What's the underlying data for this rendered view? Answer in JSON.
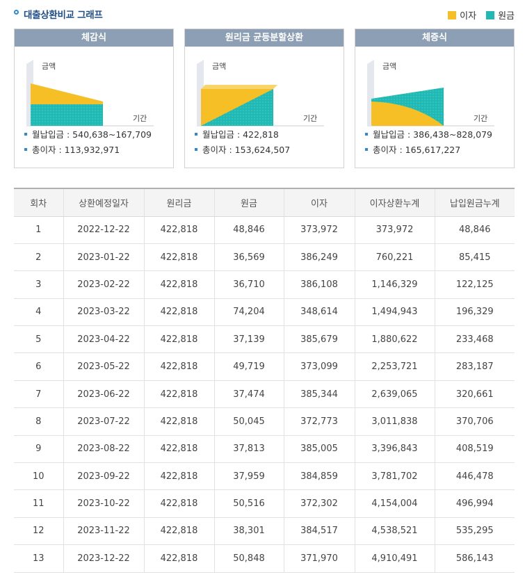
{
  "header": {
    "title": "대출상환비교 그래프",
    "legend": [
      {
        "label": "이자",
        "color": "#f6bf26"
      },
      {
        "label": "원금",
        "color": "#20b9b4"
      }
    ]
  },
  "cards": [
    {
      "title": "체감식",
      "y_label": "금액",
      "x_label": "기간",
      "monthly": "월납입금 : 540,638~167,709",
      "total_interest": "총이자 : 113,932,971"
    },
    {
      "title": "원리금 균등분할상환",
      "y_label": "금액",
      "x_label": "기간",
      "monthly": "월납입금 : 422,818",
      "total_interest": "총이자 : 153,624,507"
    },
    {
      "title": "체증식",
      "y_label": "금액",
      "x_label": "기간",
      "monthly": "월납입금 : 386,438~828,079",
      "total_interest": "총이자 : 165,617,227"
    }
  ],
  "table": {
    "columns": [
      "회차",
      "상환예정일자",
      "원리금",
      "원금",
      "이자",
      "이자상환누계",
      "납입원금누계"
    ],
    "rows": [
      [
        "1",
        "2022-12-22",
        "422,818",
        "48,846",
        "373,972",
        "373,972",
        "48,846"
      ],
      [
        "2",
        "2023-01-22",
        "422,818",
        "36,569",
        "386,249",
        "760,221",
        "85,415"
      ],
      [
        "3",
        "2023-02-22",
        "422,818",
        "36,710",
        "386,108",
        "1,146,329",
        "122,125"
      ],
      [
        "4",
        "2023-03-22",
        "422,818",
        "74,204",
        "348,614",
        "1,494,943",
        "196,329"
      ],
      [
        "5",
        "2023-04-22",
        "422,818",
        "37,139",
        "385,679",
        "1,880,622",
        "233,468"
      ],
      [
        "6",
        "2023-05-22",
        "422,818",
        "49,719",
        "373,099",
        "2,253,721",
        "283,187"
      ],
      [
        "7",
        "2023-06-22",
        "422,818",
        "37,474",
        "385,344",
        "2,639,065",
        "320,661"
      ],
      [
        "8",
        "2023-07-22",
        "422,818",
        "50,045",
        "372,773",
        "3,011,838",
        "370,706"
      ],
      [
        "9",
        "2023-08-22",
        "422,818",
        "37,813",
        "385,005",
        "3,396,843",
        "408,519"
      ],
      [
        "10",
        "2023-09-22",
        "422,818",
        "37,959",
        "384,859",
        "3,781,702",
        "446,478"
      ],
      [
        "11",
        "2023-10-22",
        "422,818",
        "50,516",
        "372,302",
        "4,154,004",
        "496,994"
      ],
      [
        "12",
        "2023-11-22",
        "422,818",
        "38,301",
        "384,517",
        "4,538,521",
        "535,295"
      ],
      [
        "13",
        "2023-12-22",
        "422,818",
        "50,848",
        "371,970",
        "4,910,491",
        "586,143"
      ]
    ]
  }
}
